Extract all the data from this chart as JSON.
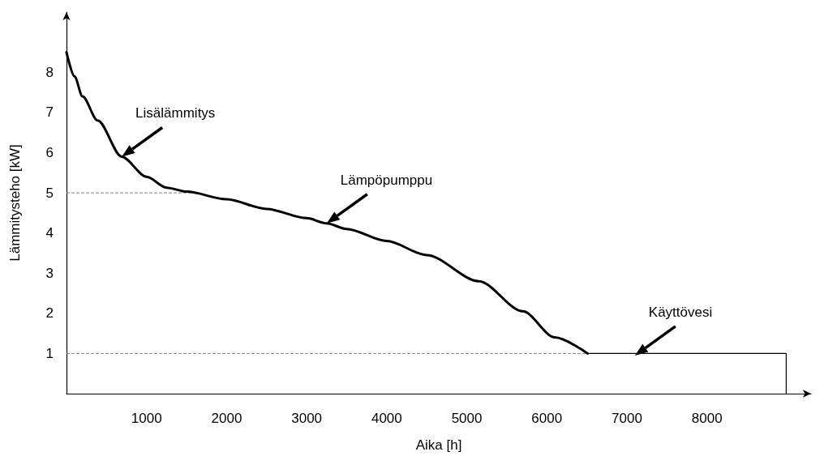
{
  "chart_data": {
    "type": "line",
    "xlabel": "Aika [h]",
    "ylabel": "Lämmitysteho [kW]",
    "xlim": [
      0,
      9300
    ],
    "ylim": [
      0,
      9.5
    ],
    "xticks": [
      1000,
      2000,
      3000,
      4000,
      5000,
      6000,
      7000,
      8000
    ],
    "yticks": [
      1,
      2,
      3,
      4,
      5,
      6,
      7,
      8
    ],
    "grid": false,
    "marker": "none",
    "line_style": "solid",
    "series": [
      {
        "color": "#000000",
        "x": [
          0,
          100,
          200,
          390,
          690,
          1000,
          1250,
          1500,
          2000,
          2500,
          3000,
          3250,
          3500,
          4000,
          4500,
          5150,
          5700,
          6100,
          6510
        ],
        "values": [
          8.5,
          7.9,
          7.4,
          6.8,
          5.9,
          5.4,
          5.13,
          5.03,
          4.84,
          4.6,
          4.37,
          4.24,
          4.1,
          3.8,
          3.45,
          2.8,
          2.05,
          1.4,
          1.0
        ]
      },
      {
        "color": "#000000",
        "x": [
          6510,
          8990,
          8990
        ],
        "values": [
          1.0,
          1.0,
          0
        ]
      }
    ],
    "ref_lines": [
      {
        "axis": "y",
        "value": 5,
        "color": "#808080",
        "line_style": "dashed"
      },
      {
        "axis": "y",
        "value": 1,
        "color": "#808080",
        "line_style": "dashed"
      }
    ],
    "annotations": [
      {
        "text": "Lisälämmitys",
        "x": 690,
        "y": 5.9
      },
      {
        "text": "Lämpöpumppu",
        "x": 3250,
        "y": 4.24
      },
      {
        "text": "Käyttövesi",
        "x": 7100,
        "y": 0.95
      }
    ]
  }
}
